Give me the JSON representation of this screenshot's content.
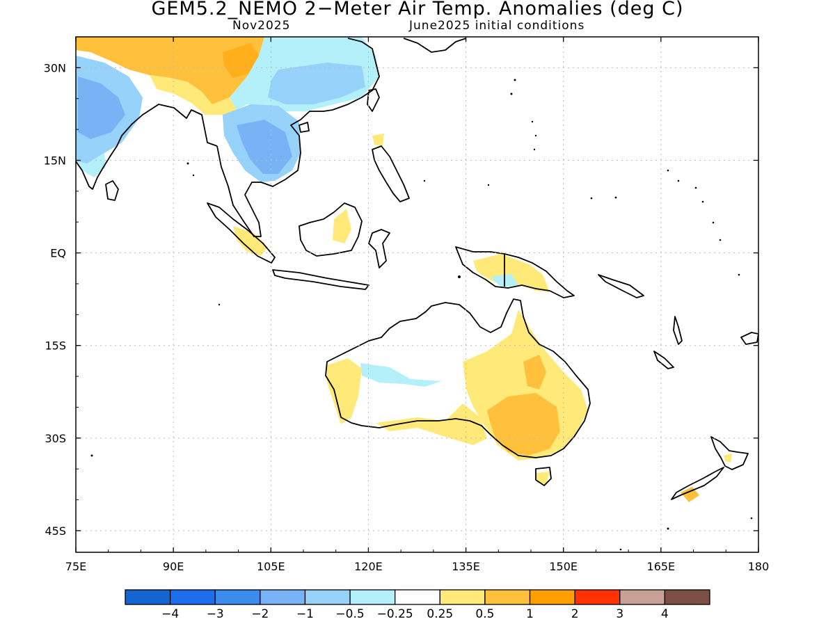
{
  "title": "GEM5.2_NEMO 2−Meter Air Temp. Anomalies (deg C)",
  "subtitle_left": "Nov2025",
  "subtitle_right": "June2025 initial conditions",
  "map": {
    "lon_range": [
      75,
      180
    ],
    "lat_range": [
      -48.5,
      35
    ],
    "lat_ticks": [
      {
        "value": 30,
        "label": "30N"
      },
      {
        "value": 15,
        "label": "15N"
      },
      {
        "value": 0,
        "label": "EQ"
      },
      {
        "value": -15,
        "label": "15S"
      },
      {
        "value": -30,
        "label": "30S"
      },
      {
        "value": -45,
        "label": "45S"
      }
    ],
    "lon_ticks": [
      {
        "value": 75,
        "label": "75E"
      },
      {
        "value": 90,
        "label": "90E"
      },
      {
        "value": 105,
        "label": "105E"
      },
      {
        "value": 120,
        "label": "120E"
      },
      {
        "value": 135,
        "label": "135E"
      },
      {
        "value": 150,
        "label": "150E"
      },
      {
        "value": 165,
        "label": "165E"
      },
      {
        "value": 180,
        "label": "180"
      }
    ],
    "grid": "dotted"
  },
  "colorbar": {
    "colors": [
      "#1464d2",
      "#1e6eeb",
      "#3c8cf0",
      "#78b4f5",
      "#96d2fa",
      "#b4f0fa",
      "#ffffff",
      "#ffe978",
      "#ffc03c",
      "#ffa000",
      "#ff3200",
      "#c8a096",
      "#7d5046"
    ],
    "labels": [
      "−4",
      "−3",
      "−2",
      "−1",
      "−0.5",
      "−0.25",
      "0.25",
      "0.5",
      "1",
      "2",
      "3",
      "4"
    ]
  }
}
